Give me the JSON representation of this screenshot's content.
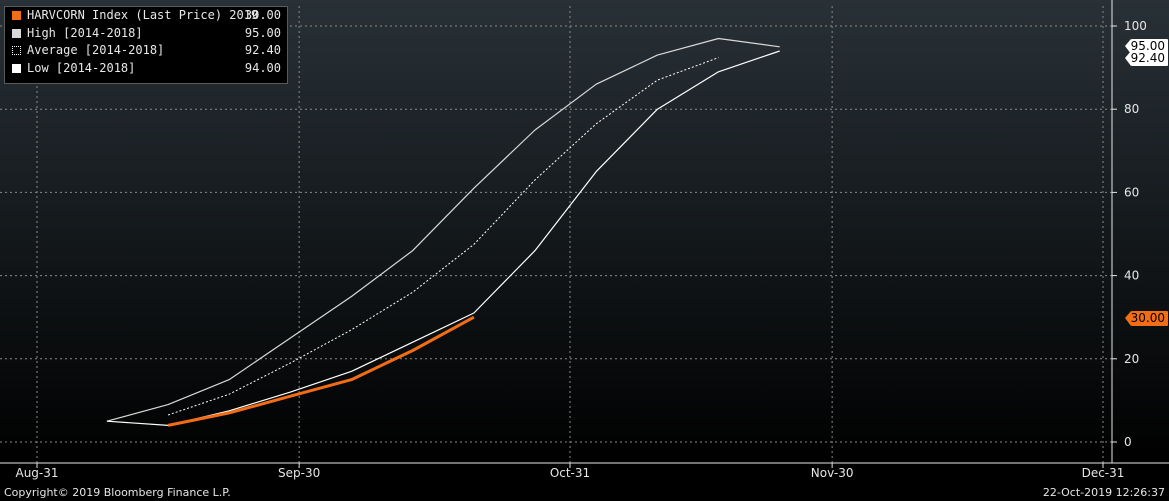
{
  "chart_data": {
    "type": "line",
    "x_ticks": [
      "Aug-31",
      "Sep-30",
      "Oct-31",
      "Nov-30",
      "Dec-31"
    ],
    "y_ticks": [
      0,
      20,
      40,
      60,
      80,
      100
    ],
    "ylim": [
      -2,
      103
    ],
    "xlim": [
      "2019-08-31",
      "2019-12-31"
    ],
    "grid": true,
    "legend_position": "top-left",
    "series": [
      {
        "name": "HARVCORN Index (Last Price) 2019",
        "last_value": "30.00",
        "color": "#f26d15",
        "style": "solid",
        "points": [
          [
            "2019-09-15",
            4
          ],
          [
            "2019-09-22",
            7
          ],
          [
            "2019-09-29",
            11
          ],
          [
            "2019-10-06",
            15
          ],
          [
            "2019-10-13",
            22
          ],
          [
            "2019-10-20",
            30
          ]
        ]
      },
      {
        "name": "High [2014-2018]",
        "last_value": "95.00",
        "color": "#d9d9d9",
        "style": "solid",
        "points": [
          [
            "2019-09-08",
            5
          ],
          [
            "2019-09-15",
            9
          ],
          [
            "2019-09-22",
            15
          ],
          [
            "2019-09-29",
            25
          ],
          [
            "2019-10-06",
            35
          ],
          [
            "2019-10-13",
            46
          ],
          [
            "2019-10-20",
            61
          ],
          [
            "2019-10-27",
            75
          ],
          [
            "2019-11-03",
            86
          ],
          [
            "2019-11-10",
            93
          ],
          [
            "2019-11-17",
            97
          ],
          [
            "2019-11-24",
            95
          ]
        ]
      },
      {
        "name": "Average [2014-2018]",
        "last_value": "92.40",
        "color": "#ffffff",
        "style": "dotted",
        "points": [
          [
            "2019-09-15",
            6.5
          ],
          [
            "2019-09-22",
            11.5
          ],
          [
            "2019-09-29",
            19
          ],
          [
            "2019-10-06",
            27
          ],
          [
            "2019-10-13",
            36
          ],
          [
            "2019-10-20",
            47.5
          ],
          [
            "2019-10-27",
            63
          ],
          [
            "2019-11-03",
            76.5
          ],
          [
            "2019-11-10",
            87
          ],
          [
            "2019-11-17",
            92.4
          ]
        ]
      },
      {
        "name": "Low [2014-2018]",
        "last_value": "94.00",
        "color": "#ffffff",
        "style": "solid",
        "points": [
          [
            "2019-09-08",
            5
          ],
          [
            "2019-09-15",
            4
          ],
          [
            "2019-09-22",
            7.5
          ],
          [
            "2019-09-29",
            12
          ],
          [
            "2019-10-06",
            17
          ],
          [
            "2019-10-13",
            24
          ],
          [
            "2019-10-20",
            31
          ],
          [
            "2019-10-27",
            46
          ],
          [
            "2019-11-03",
            65
          ],
          [
            "2019-11-10",
            80
          ],
          [
            "2019-11-17",
            89
          ],
          [
            "2019-11-24",
            94
          ]
        ]
      }
    ],
    "axis_labels": [
      {
        "text": "95.00",
        "value": 95,
        "bg": "#ffffff",
        "fg": "#000000"
      },
      {
        "text": "92.40",
        "value": 92.4,
        "bg": "#ffffff",
        "fg": "#000000"
      },
      {
        "text": "30.00",
        "value": 30,
        "bg": "#f26d15",
        "fg": "#000000"
      }
    ]
  },
  "legend": {
    "rows": [
      {
        "label": "HARVCORN Index (Last Price) 2019",
        "value": "30.00",
        "swatch": "#f26d15",
        "swatch_style": "solid"
      },
      {
        "label": "High [2014-2018]",
        "value": "95.00",
        "swatch": "#d9d9d9",
        "swatch_style": "solid"
      },
      {
        "label": "Average [2014-2018]",
        "value": "92.40",
        "swatch": "#ffffff",
        "swatch_style": "dotted"
      },
      {
        "label": "Low [2014-2018]",
        "value": "94.00",
        "swatch": "#ffffff",
        "swatch_style": "solid"
      }
    ]
  },
  "footer": {
    "copyright": "Copyright© 2019 Bloomberg Finance L.P.",
    "timestamp": "22-Oct-2019 12:26:37"
  },
  "colors": {
    "bg_top": "#283137",
    "bg_bottom": "#000000",
    "grid": "#8a8a8a",
    "axis_text": "#e6e6e6"
  }
}
